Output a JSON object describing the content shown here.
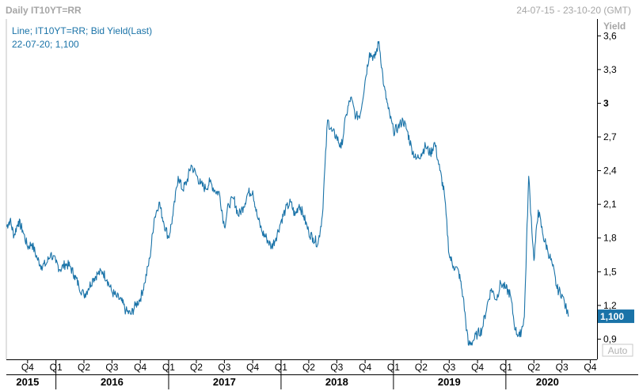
{
  "header": {
    "title": "Daily IT10YT=RR",
    "date_range": "24-07-15 - 23-10-20",
    "timezone": "(GMT)"
  },
  "legend": {
    "line1": "Line; IT10YT=RR; Bid Yield(Last)",
    "line2": "22-07-20; 1,100"
  },
  "yaxis": {
    "title": "Yield",
    "auto_label": "Auto",
    "last_value_label": "1,100"
  },
  "colors": {
    "series": "#1a73a8",
    "badge": "#1a73a8",
    "axis_text": "#000000",
    "header_text": "#a6a6a6"
  },
  "chart_data": {
    "type": "line",
    "title": "Daily IT10YT=RR",
    "ylabel": "Yield",
    "ylim": [
      0.72,
      3.75
    ],
    "yticks": [
      "3,6",
      "3,3",
      "3",
      "2,7",
      "2,4",
      "2,1",
      "1,8",
      "1,5",
      "1,2",
      "0,9"
    ],
    "ytick_values": [
      3.6,
      3.3,
      3.0,
      2.7,
      2.4,
      2.1,
      1.8,
      1.5,
      1.2,
      0.9
    ],
    "quarter_ticks": [
      "Q4",
      "Q1",
      "Q2",
      "Q3",
      "Q4",
      "Q1",
      "Q2",
      "Q3",
      "Q4",
      "Q1",
      "Q2",
      "Q3",
      "Q4",
      "Q1",
      "Q2",
      "Q3",
      "Q4",
      "Q1",
      "Q2",
      "Q3",
      "Q4"
    ],
    "year_labels": [
      "2015",
      "2016",
      "2017",
      "2018",
      "2019",
      "2020"
    ],
    "x_start": "2015-07-24",
    "x_end": "2020-10-23",
    "series": [
      {
        "name": "IT10YT=RR Bid Yield(Last)",
        "points": [
          [
            "2015-07-24",
            1.9
          ],
          [
            "2015-08-05",
            1.96
          ],
          [
            "2015-08-18",
            1.82
          ],
          [
            "2015-09-01",
            1.95
          ],
          [
            "2015-09-15",
            1.87
          ],
          [
            "2015-10-01",
            1.72
          ],
          [
            "2015-10-15",
            1.75
          ],
          [
            "2015-11-01",
            1.62
          ],
          [
            "2015-11-15",
            1.55
          ],
          [
            "2015-12-01",
            1.57
          ],
          [
            "2015-12-15",
            1.66
          ],
          [
            "2016-01-01",
            1.58
          ],
          [
            "2016-01-15",
            1.52
          ],
          [
            "2016-02-01",
            1.57
          ],
          [
            "2016-02-15",
            1.55
          ],
          [
            "2016-03-01",
            1.47
          ],
          [
            "2016-03-15",
            1.38
          ],
          [
            "2016-04-01",
            1.29
          ],
          [
            "2016-04-15",
            1.35
          ],
          [
            "2016-05-01",
            1.44
          ],
          [
            "2016-05-15",
            1.48
          ],
          [
            "2016-06-01",
            1.5
          ],
          [
            "2016-06-15",
            1.43
          ],
          [
            "2016-07-01",
            1.32
          ],
          [
            "2016-07-15",
            1.28
          ],
          [
            "2016-08-01",
            1.24
          ],
          [
            "2016-08-15",
            1.15
          ],
          [
            "2016-09-01",
            1.12
          ],
          [
            "2016-09-15",
            1.2
          ],
          [
            "2016-10-01",
            1.26
          ],
          [
            "2016-10-15",
            1.4
          ],
          [
            "2016-11-01",
            1.62
          ],
          [
            "2016-11-15",
            1.97
          ],
          [
            "2016-12-01",
            2.12
          ],
          [
            "2016-12-15",
            1.95
          ],
          [
            "2017-01-01",
            1.8
          ],
          [
            "2017-01-15",
            2.0
          ],
          [
            "2017-02-01",
            2.35
          ],
          [
            "2017-02-15",
            2.23
          ],
          [
            "2017-03-01",
            2.3
          ],
          [
            "2017-03-15",
            2.45
          ],
          [
            "2017-04-01",
            2.36
          ],
          [
            "2017-04-15",
            2.28
          ],
          [
            "2017-05-01",
            2.24
          ],
          [
            "2017-05-15",
            2.3
          ],
          [
            "2017-06-01",
            2.22
          ],
          [
            "2017-06-15",
            2.2
          ],
          [
            "2017-07-01",
            1.9
          ],
          [
            "2017-07-15",
            2.1
          ],
          [
            "2017-08-01",
            2.15
          ],
          [
            "2017-08-15",
            2.0
          ],
          [
            "2017-09-01",
            2.08
          ],
          [
            "2017-09-15",
            2.2
          ],
          [
            "2017-10-01",
            2.22
          ],
          [
            "2017-10-15",
            2.0
          ],
          [
            "2017-11-01",
            1.85
          ],
          [
            "2017-11-15",
            1.8
          ],
          [
            "2017-12-01",
            1.72
          ],
          [
            "2017-12-15",
            1.8
          ],
          [
            "2018-01-01",
            1.95
          ],
          [
            "2018-01-15",
            2.05
          ],
          [
            "2018-02-01",
            2.12
          ],
          [
            "2018-02-15",
            2.0
          ],
          [
            "2018-03-01",
            2.1
          ],
          [
            "2018-03-15",
            2.0
          ],
          [
            "2018-04-01",
            1.85
          ],
          [
            "2018-04-15",
            1.8
          ],
          [
            "2018-05-01",
            1.75
          ],
          [
            "2018-05-15",
            2.0
          ],
          [
            "2018-06-01",
            2.85
          ],
          [
            "2018-06-15",
            2.75
          ],
          [
            "2018-07-01",
            2.7
          ],
          [
            "2018-07-15",
            2.6
          ],
          [
            "2018-08-01",
            2.9
          ],
          [
            "2018-08-15",
            3.05
          ],
          [
            "2018-09-01",
            2.88
          ],
          [
            "2018-09-15",
            2.9
          ],
          [
            "2018-10-01",
            3.2
          ],
          [
            "2018-10-15",
            3.45
          ],
          [
            "2018-11-01",
            3.4
          ],
          [
            "2018-11-15",
            3.55
          ],
          [
            "2018-12-01",
            3.15
          ],
          [
            "2018-12-15",
            2.95
          ],
          [
            "2019-01-01",
            2.75
          ],
          [
            "2019-01-15",
            2.78
          ],
          [
            "2019-02-01",
            2.85
          ],
          [
            "2019-02-15",
            2.75
          ],
          [
            "2019-03-01",
            2.6
          ],
          [
            "2019-03-15",
            2.5
          ],
          [
            "2019-04-01",
            2.55
          ],
          [
            "2019-04-15",
            2.62
          ],
          [
            "2019-05-01",
            2.55
          ],
          [
            "2019-05-15",
            2.65
          ],
          [
            "2019-06-01",
            2.4
          ],
          [
            "2019-06-15",
            2.2
          ],
          [
            "2019-07-01",
            1.65
          ],
          [
            "2019-07-15",
            1.55
          ],
          [
            "2019-08-01",
            1.5
          ],
          [
            "2019-08-15",
            1.28
          ],
          [
            "2019-09-01",
            0.85
          ],
          [
            "2019-09-15",
            0.88
          ],
          [
            "2019-10-01",
            0.95
          ],
          [
            "2019-10-15",
            0.98
          ],
          [
            "2019-11-01",
            1.2
          ],
          [
            "2019-11-15",
            1.35
          ],
          [
            "2019-12-01",
            1.25
          ],
          [
            "2019-12-15",
            1.4
          ],
          [
            "2020-01-01",
            1.35
          ],
          [
            "2020-01-15",
            1.3
          ],
          [
            "2020-02-01",
            0.98
          ],
          [
            "2020-02-15",
            0.92
          ],
          [
            "2020-03-01",
            1.1
          ],
          [
            "2020-03-15",
            2.35
          ],
          [
            "2020-04-01",
            1.6
          ],
          [
            "2020-04-15",
            2.05
          ],
          [
            "2020-05-01",
            1.82
          ],
          [
            "2020-05-15",
            1.7
          ],
          [
            "2020-06-01",
            1.55
          ],
          [
            "2020-06-15",
            1.35
          ],
          [
            "2020-07-01",
            1.3
          ],
          [
            "2020-07-22",
            1.1
          ]
        ]
      }
    ]
  }
}
